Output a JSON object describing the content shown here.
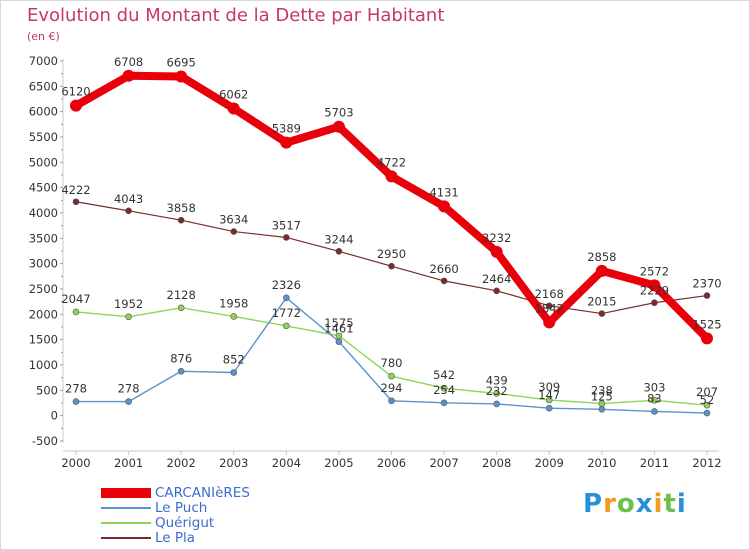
{
  "header": {
    "title": "Evolution du Montant de la Dette par Habitant",
    "subtitle": "(en €)"
  },
  "chart_data": {
    "type": "line",
    "title": "Evolution du Montant de la Dette par Habitant",
    "subtitle": "(en €)",
    "xlabel": "",
    "ylabel": "",
    "x": [
      "2000",
      "2001",
      "2002",
      "2003",
      "2004",
      "2005",
      "2006",
      "2007",
      "2008",
      "2009",
      "2010",
      "2011",
      "2012"
    ],
    "y_ticks": [
      "-500",
      "0",
      "500",
      "1000",
      "1500",
      "2000",
      "2500",
      "3000",
      "3500",
      "4000",
      "4500",
      "5000",
      "5500",
      "6000",
      "6500",
      "7000"
    ],
    "ylim": [
      -500,
      7000
    ],
    "grid": false,
    "legend_position": "bottom-left",
    "series": [
      {
        "name": "CARCANIèRES",
        "color": "#e8000b",
        "values": [
          6120,
          6708,
          6695,
          6062,
          5389,
          5703,
          4722,
          4131,
          3232,
          1842,
          2858,
          2572,
          1525
        ],
        "labels": [
          "6120",
          "6708",
          "6695",
          "6062",
          "5389",
          "5703",
          "4722",
          "4131",
          "3232",
          "1842",
          "2858",
          "2572",
          "1525"
        ]
      },
      {
        "name": "Le Puch",
        "color": "#5a93cc",
        "values": [
          278,
          278,
          876,
          852,
          2326,
          1461,
          294,
          254,
          232,
          147,
          125,
          83,
          52
        ],
        "labels": [
          "278",
          "278",
          "876",
          "852",
          "2326",
          "1461",
          "294",
          "254",
          "232",
          "147",
          "125",
          "83",
          "52"
        ]
      },
      {
        "name": "Quérigut",
        "color": "#8fd45a",
        "values": [
          2047,
          1952,
          2128,
          1958,
          1772,
          1575,
          780,
          542,
          439,
          309,
          238,
          303,
          207
        ],
        "labels": [
          "2047",
          "1952",
          "2128",
          "1958",
          "1772",
          "1575",
          "780",
          "542",
          "439",
          "309",
          "238",
          "303",
          "207"
        ]
      },
      {
        "name": "Le Pla",
        "color": "#7a2a2a",
        "values": [
          4222,
          4043,
          3858,
          3634,
          3517,
          3244,
          2950,
          2660,
          2464,
          2168,
          2015,
          2229,
          2370
        ],
        "labels": [
          "4222",
          "4043",
          "3858",
          "3634",
          "3517",
          "3244",
          "2950",
          "2660",
          "2464",
          "2168",
          "2015",
          "2229",
          "2370"
        ]
      }
    ]
  },
  "legend": {
    "items": [
      {
        "label": "CARCANIèRES",
        "color": "#e8000b"
      },
      {
        "label": "Le Puch",
        "color": "#5a93cc"
      },
      {
        "label": "Quérigut",
        "color": "#8fd45a"
      },
      {
        "label": "Le Pla",
        "color": "#7a2a2a"
      }
    ]
  },
  "logo": {
    "letters": [
      "P",
      "r",
      "o",
      "x",
      "i",
      "t",
      "i"
    ],
    "colors": [
      "#2a8fd8",
      "#f29a1c",
      "#6cc04a",
      "#2a8fd8",
      "#f29a1c",
      "#6cc04a",
      "#2a8fd8"
    ]
  }
}
